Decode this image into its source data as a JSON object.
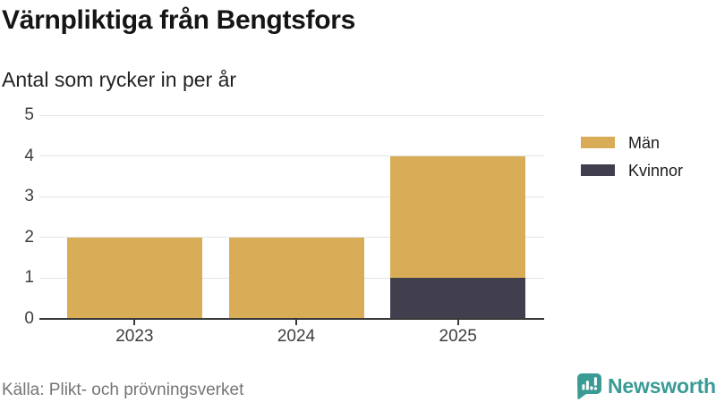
{
  "header": {
    "title": "Värnpliktiga från Bengtsfors",
    "subtitle": "Antal som rycker in per år"
  },
  "footer": {
    "source": "Källa: Plikt- och prövningsverket",
    "brand": "Newsworthy"
  },
  "colors": {
    "men": "#d9ac58",
    "women": "#413e4e",
    "grid": "#e4e4e4",
    "axis": "#3a3a3a",
    "text": "#1a1a1a",
    "muted": "#757575",
    "brand_teal": "#3a9b95"
  },
  "chart_data": {
    "type": "bar",
    "stacked": true,
    "title": "Värnpliktiga från Bengtsfors",
    "subtitle": "Antal som rycker in per år",
    "categories": [
      "2023",
      "2024",
      "2025"
    ],
    "series": [
      {
        "name": "Män",
        "color": "#d9ac58",
        "values": [
          2,
          2,
          3
        ]
      },
      {
        "name": "Kvinnor",
        "color": "#413e4e",
        "values": [
          0,
          0,
          1
        ]
      }
    ],
    "stack_order_bottom_to_top": [
      "Kvinnor",
      "Män"
    ],
    "xlabel": "",
    "ylabel": "",
    "ylim": [
      0,
      5
    ],
    "yticks": [
      0,
      1,
      2,
      3,
      4,
      5
    ],
    "grid": true,
    "legend_position": "right"
  }
}
